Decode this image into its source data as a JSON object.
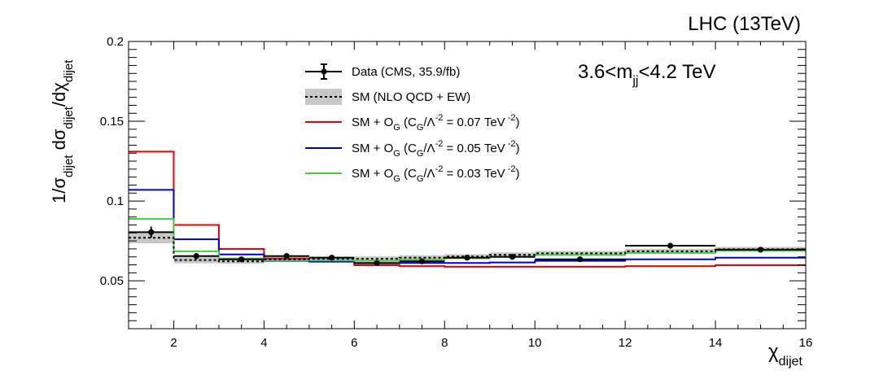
{
  "chart_data": {
    "type": "step-histogram",
    "title": "LHC (13TeV)",
    "annotation": "3.6<m_jj<4.2 TeV",
    "xlabel": "χ_dijet",
    "ylabel": "1/σ_dijet dσ_dijet/dχ_dijet",
    "xlim": [
      1,
      16
    ],
    "ylim": [
      0.02,
      0.2
    ],
    "x_ticks": [
      2,
      4,
      6,
      8,
      10,
      12,
      14,
      16
    ],
    "y_ticks": [
      0.05,
      0.1,
      0.15,
      0.2
    ],
    "y_tick_labels": [
      "0.05",
      "0.1",
      "0.15",
      "0.2"
    ],
    "bin_edges": [
      1,
      2,
      3,
      4,
      5,
      6,
      7,
      8,
      9,
      10,
      12,
      14,
      16
    ],
    "series": [
      {
        "name": "Data (CMS, 35.9/fb)",
        "kind": "data",
        "color": "#000000",
        "values": [
          0.0805,
          0.0655,
          0.0635,
          0.0655,
          0.0645,
          0.0612,
          0.0622,
          0.0645,
          0.065,
          0.0635,
          0.072,
          0.0695
        ],
        "errors": [
          0.0035,
          0.0018,
          0.0015,
          0.0018,
          0.0016,
          0.0014,
          0.0014,
          0.0014,
          0.0016,
          0.0014,
          0.0018,
          0.0016
        ]
      },
      {
        "name": "SM (NLO QCD + EW)",
        "kind": "sm",
        "color": "#000000",
        "band_color": "#c8c8c8",
        "values": [
          0.077,
          0.063,
          0.0622,
          0.0635,
          0.0638,
          0.0638,
          0.0645,
          0.0652,
          0.0663,
          0.0672,
          0.0685,
          0.0698
        ],
        "band": [
          0.0035,
          0.002,
          0.0015,
          0.0015,
          0.0015,
          0.0015,
          0.0015,
          0.0015,
          0.0015,
          0.0015,
          0.0015,
          0.0015
        ]
      },
      {
        "name": "SM + O_G (C_G/Λ^-2 = 0.07 TeV^-2)",
        "kind": "model",
        "color": "#ee0000",
        "values": [
          0.131,
          0.085,
          0.07,
          0.064,
          0.0625,
          0.0598,
          0.0592,
          0.0588,
          0.0588,
          0.0588,
          0.0592,
          0.0598
        ]
      },
      {
        "name": "SM + O_G (C_G/Λ^-2 = 0.05 TeV^-2)",
        "kind": "model",
        "color": "#0000cc",
        "values": [
          0.107,
          0.076,
          0.0665,
          0.0625,
          0.062,
          0.061,
          0.0612,
          0.0612,
          0.0615,
          0.0625,
          0.0635,
          0.0645
        ]
      },
      {
        "name": "SM + O_G (C_G/Λ^-2 = 0.03 TeV^-2)",
        "kind": "model",
        "color": "#44cc44",
        "values": [
          0.0888,
          0.0685,
          0.064,
          0.0628,
          0.0628,
          0.0625,
          0.0632,
          0.0642,
          0.0652,
          0.0662,
          0.0675,
          0.0688
        ]
      }
    ]
  }
}
